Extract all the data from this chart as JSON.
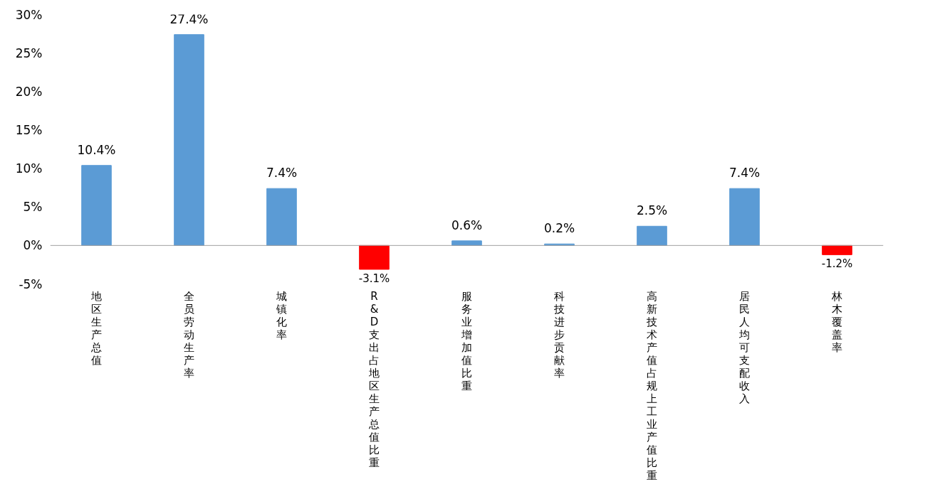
{
  "chart_data": {
    "type": "bar",
    "categories": [
      "地区生产总值",
      "全员劳动生产率",
      "城镇化率",
      "R&D支出占地区生产总值比重",
      "服务业增加值比重",
      "科技进步贡献率",
      "高新技术产值占规上工业产值比重",
      "居民人均可支配收入",
      "林木覆盖率"
    ],
    "values": [
      10.4,
      27.4,
      7.4,
      -3.1,
      0.6,
      0.2,
      2.5,
      7.4,
      -1.2
    ],
    "colors": [
      "#5b9bd5",
      "#5b9bd5",
      "#5b9bd5",
      "#ff0000",
      "#5b9bd5",
      "#5b9bd5",
      "#5b9bd5",
      "#5b9bd5",
      "#ff0000"
    ],
    "value_labels": [
      "10.4%",
      "27.4%",
      "7.4%",
      "-3.1%",
      "0.6%",
      "0.2%",
      "2.5%",
      "7.4%",
      "-1.2%"
    ],
    "ylim": [
      -5,
      30
    ],
    "yticks": [
      {
        "value": -5,
        "label": "-5%"
      },
      {
        "value": 0,
        "label": "0%"
      },
      {
        "value": 5,
        "label": "5%"
      },
      {
        "value": 10,
        "label": "10%"
      },
      {
        "value": 15,
        "label": "15%"
      },
      {
        "value": 20,
        "label": "20%"
      },
      {
        "value": 25,
        "label": "25%"
      },
      {
        "value": 30,
        "label": "30%"
      }
    ]
  }
}
